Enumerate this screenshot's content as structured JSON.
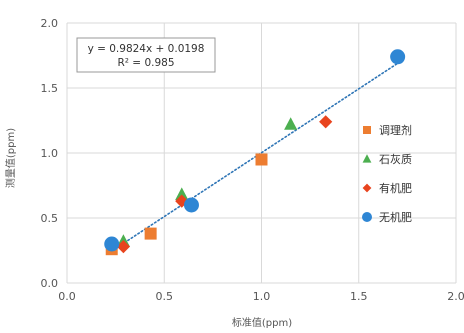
{
  "chart_data": {
    "type": "scatter",
    "title": "",
    "xlabel": "标准值(ppm)",
    "ylabel": "测量值(ppm)",
    "xlim": [
      0.0,
      2.0
    ],
    "ylim": [
      0.0,
      2.0
    ],
    "x_ticks": [
      "0.0",
      "0.5",
      "1.0",
      "1.5",
      "2.0"
    ],
    "y_ticks": [
      "0.0",
      "0.5",
      "1.0",
      "1.5",
      "2.0"
    ],
    "grid": true,
    "legend_position": "right",
    "trendline": {
      "type": "linear",
      "slope": 0.9824,
      "intercept": 0.0198,
      "equation": "y = 0.9824x + 0.0198",
      "r2": "R² = 0.985",
      "color": "#2E75B6",
      "style": "dotted"
    },
    "series": [
      {
        "name": "调理剂",
        "marker": "square",
        "color": "#ED7D31",
        "x": [
          0.23,
          0.43,
          1.0
        ],
        "y": [
          0.26,
          0.38,
          0.95
        ]
      },
      {
        "name": "石灰质",
        "marker": "triangle",
        "color": "#4CAF50",
        "x": [
          0.29,
          0.59,
          1.15
        ],
        "y": [
          0.32,
          0.68,
          1.22
        ]
      },
      {
        "name": "有机肥",
        "marker": "diamond",
        "color": "#E8441E",
        "x": [
          0.29,
          0.59,
          1.33
        ],
        "y": [
          0.28,
          0.63,
          1.24
        ]
      },
      {
        "name": "无机肥",
        "marker": "circle",
        "color": "#2E86D4",
        "x": [
          0.23,
          0.64,
          1.7
        ],
        "y": [
          0.3,
          0.6,
          1.74
        ]
      }
    ]
  }
}
